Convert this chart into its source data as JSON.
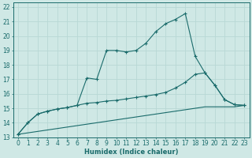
{
  "xlabel": "Humidex (Indice chaleur)",
  "bg_color": "#cfe8e5",
  "line_color": "#1a6b6b",
  "grid_color": "#b8d8d5",
  "xlim": [
    -0.5,
    23.5
  ],
  "ylim": [
    13,
    22.3
  ],
  "xticks": [
    0,
    1,
    2,
    3,
    4,
    5,
    6,
    7,
    8,
    9,
    10,
    11,
    12,
    13,
    14,
    15,
    16,
    17,
    18,
    19,
    20,
    21,
    22,
    23
  ],
  "yticks": [
    13,
    14,
    15,
    16,
    17,
    18,
    19,
    20,
    21,
    22
  ],
  "series1_x": [
    0,
    1,
    2,
    3,
    4,
    5,
    6,
    7,
    8,
    9,
    10,
    11,
    12,
    13,
    14,
    15,
    16,
    17,
    18,
    19,
    20,
    21,
    22,
    23
  ],
  "series1_y": [
    13.2,
    14.0,
    14.6,
    14.8,
    14.95,
    15.05,
    15.2,
    17.1,
    17.0,
    19.0,
    19.0,
    18.9,
    19.0,
    19.5,
    20.3,
    20.85,
    21.15,
    21.55,
    18.6,
    17.45,
    16.6,
    15.6,
    15.25,
    15.2
  ],
  "series2_x": [
    0,
    1,
    2,
    3,
    4,
    5,
    6,
    7,
    8,
    9,
    10,
    11,
    12,
    13,
    14,
    15,
    16,
    17,
    18,
    19,
    20,
    21,
    22,
    23
  ],
  "series2_y": [
    13.2,
    14.0,
    14.6,
    14.8,
    14.95,
    15.05,
    15.2,
    15.35,
    15.4,
    15.5,
    15.55,
    15.65,
    15.75,
    15.85,
    15.95,
    16.1,
    16.4,
    16.8,
    17.35,
    17.45,
    16.6,
    15.6,
    15.25,
    15.2
  ],
  "series3_x": [
    0,
    19,
    22,
    23
  ],
  "series3_y": [
    13.2,
    15.1,
    15.1,
    15.2
  ],
  "xlabel_fontsize": 6,
  "tick_fontsize": 5.5
}
